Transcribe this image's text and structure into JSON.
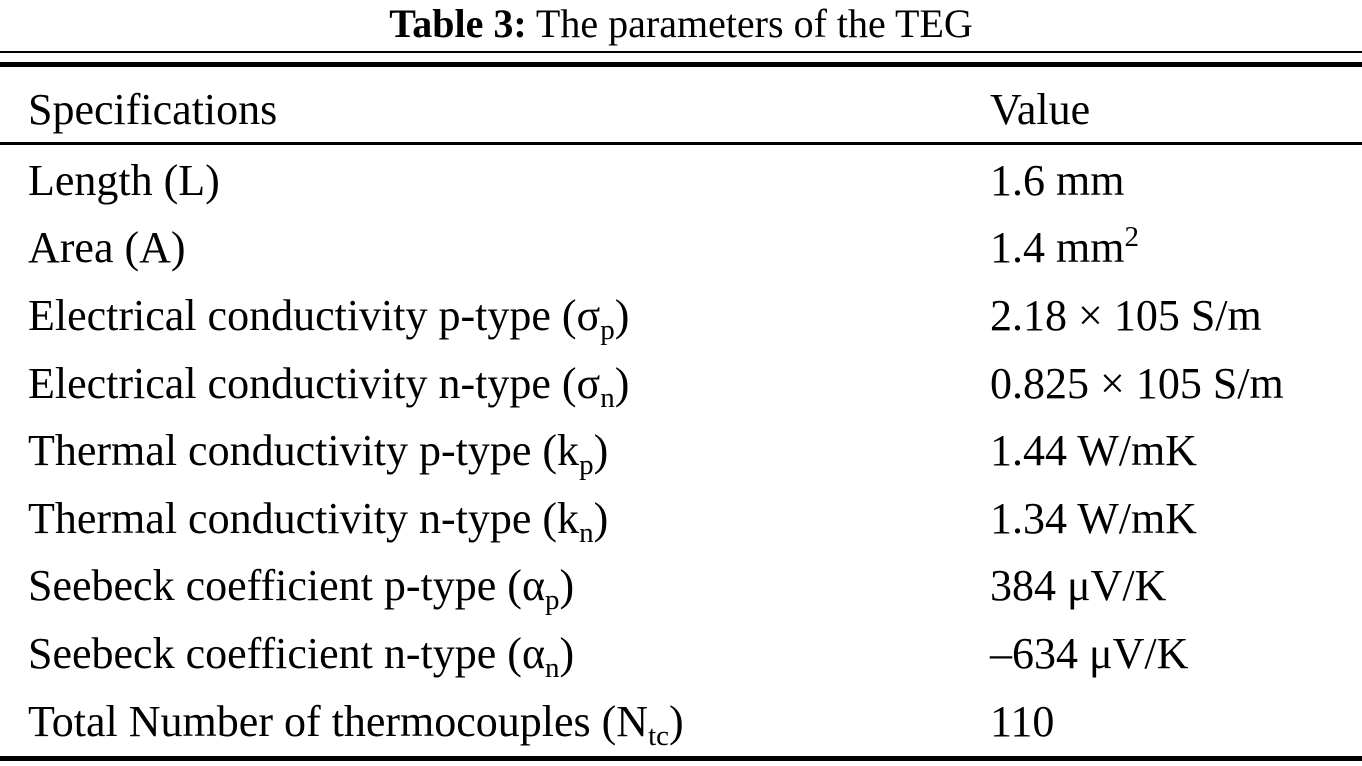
{
  "title": {
    "label": "Table 3:",
    "text": " The parameters of the TEG"
  },
  "table": {
    "headers": {
      "spec": "Specifications",
      "value": "Value"
    },
    "rows": [
      {
        "spec": {
          "pre": "Length (L)",
          "sub": "",
          "post": ""
        },
        "value": {
          "pre": "1.6 mm",
          "sup": "",
          "post": ""
        }
      },
      {
        "spec": {
          "pre": "Area (A)",
          "sub": "",
          "post": ""
        },
        "value": {
          "pre": "1.4 mm",
          "sup": "2",
          "post": ""
        }
      },
      {
        "spec": {
          "pre": "Electrical conductivity p-type (σ",
          "sub": "p",
          "post": ")"
        },
        "value": {
          "pre": "2.18 × 105 S/m",
          "sup": "",
          "post": ""
        }
      },
      {
        "spec": {
          "pre": "Electrical conductivity n-type (σ",
          "sub": "n",
          "post": ")"
        },
        "value": {
          "pre": "0.825 × 105 S/m",
          "sup": "",
          "post": ""
        }
      },
      {
        "spec": {
          "pre": "Thermal conductivity p-type (k",
          "sub": "p",
          "post": ")"
        },
        "value": {
          "pre": "1.44 W/mK",
          "sup": "",
          "post": ""
        }
      },
      {
        "spec": {
          "pre": "Thermal conductivity n-type (k",
          "sub": "n",
          "post": ")"
        },
        "value": {
          "pre": "1.34 W/mK",
          "sup": "",
          "post": ""
        }
      },
      {
        "spec": {
          "pre": "Seebeck coefficient p-type (α",
          "sub": "p",
          "post": ")"
        },
        "value": {
          "pre": "384 μV/K",
          "sup": "",
          "post": ""
        }
      },
      {
        "spec": {
          "pre": "Seebeck coefficient n-type (α",
          "sub": "n",
          "post": ")"
        },
        "value": {
          "pre": "–634 μV/K",
          "sup": "",
          "post": ""
        }
      },
      {
        "spec": {
          "pre": "Total Number of thermocouples (N",
          "sub": "tc",
          "post": ")"
        },
        "value": {
          "pre": "110",
          "sup": "",
          "post": ""
        }
      }
    ]
  }
}
